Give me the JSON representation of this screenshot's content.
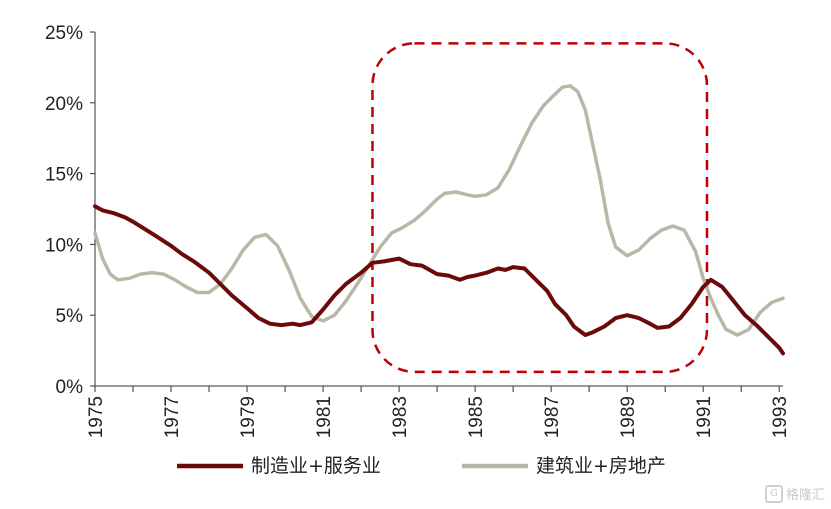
{
  "chart_data": {
    "type": "line",
    "title": "",
    "xlabel": "",
    "ylabel": "",
    "xlim": [
      1975,
      1993.1
    ],
    "ylim": [
      0,
      25
    ],
    "y_ticks": [
      "0%",
      "5%",
      "10%",
      "15%",
      "20%",
      "25%"
    ],
    "y_tick_values": [
      0,
      5,
      10,
      15,
      20,
      25
    ],
    "x_ticks": [
      "1975",
      "1977",
      "1979",
      "1981",
      "1983",
      "1985",
      "1987",
      "1989",
      "1991",
      "1993"
    ],
    "x_tick_values": [
      1975,
      1977,
      1979,
      1981,
      1983,
      1985,
      1987,
      1989,
      1991,
      1993
    ],
    "grid": false,
    "legend_position": "bottom",
    "series": [
      {
        "name": "制造业+服务业",
        "color": "#6b0a0a",
        "points": [
          [
            1975.0,
            12.7
          ],
          [
            1975.2,
            12.4
          ],
          [
            1975.5,
            12.2
          ],
          [
            1975.8,
            11.9
          ],
          [
            1976.0,
            11.6
          ],
          [
            1976.3,
            11.1
          ],
          [
            1976.6,
            10.6
          ],
          [
            1977.0,
            9.9
          ],
          [
            1977.3,
            9.3
          ],
          [
            1977.6,
            8.8
          ],
          [
            1978.0,
            8.0
          ],
          [
            1978.3,
            7.2
          ],
          [
            1978.6,
            6.4
          ],
          [
            1979.0,
            5.5
          ],
          [
            1979.3,
            4.8
          ],
          [
            1979.6,
            4.4
          ],
          [
            1979.9,
            4.3
          ],
          [
            1980.2,
            4.4
          ],
          [
            1980.4,
            4.3
          ],
          [
            1980.7,
            4.5
          ],
          [
            1981.0,
            5.4
          ],
          [
            1981.3,
            6.4
          ],
          [
            1981.6,
            7.2
          ],
          [
            1982.0,
            8.0
          ],
          [
            1982.3,
            8.7
          ],
          [
            1982.6,
            8.8
          ],
          [
            1983.0,
            9.0
          ],
          [
            1983.3,
            8.6
          ],
          [
            1983.6,
            8.5
          ],
          [
            1984.0,
            7.9
          ],
          [
            1984.3,
            7.8
          ],
          [
            1984.6,
            7.5
          ],
          [
            1984.8,
            7.7
          ],
          [
            1985.0,
            7.8
          ],
          [
            1985.3,
            8.0
          ],
          [
            1985.6,
            8.3
          ],
          [
            1985.8,
            8.2
          ],
          [
            1986.0,
            8.4
          ],
          [
            1986.3,
            8.3
          ],
          [
            1986.6,
            7.5
          ],
          [
            1986.9,
            6.7
          ],
          [
            1987.1,
            5.8
          ],
          [
            1987.4,
            5.0
          ],
          [
            1987.6,
            4.2
          ],
          [
            1987.9,
            3.6
          ],
          [
            1988.1,
            3.8
          ],
          [
            1988.4,
            4.2
          ],
          [
            1988.7,
            4.8
          ],
          [
            1989.0,
            5.0
          ],
          [
            1989.3,
            4.8
          ],
          [
            1989.6,
            4.4
          ],
          [
            1989.8,
            4.1
          ],
          [
            1990.1,
            4.2
          ],
          [
            1990.4,
            4.8
          ],
          [
            1990.7,
            5.8
          ],
          [
            1991.0,
            7.0
          ],
          [
            1991.2,
            7.5
          ],
          [
            1991.5,
            7.0
          ],
          [
            1991.8,
            6.0
          ],
          [
            1992.1,
            5.0
          ],
          [
            1992.4,
            4.3
          ],
          [
            1992.7,
            3.5
          ],
          [
            1993.0,
            2.7
          ],
          [
            1993.1,
            2.3
          ]
        ]
      },
      {
        "name": "建筑业+房地产",
        "color": "#b8b8a8",
        "points": [
          [
            1975.0,
            10.8
          ],
          [
            1975.2,
            9.0
          ],
          [
            1975.4,
            7.9
          ],
          [
            1975.6,
            7.5
          ],
          [
            1975.9,
            7.6
          ],
          [
            1976.2,
            7.9
          ],
          [
            1976.5,
            8.0
          ],
          [
            1976.8,
            7.9
          ],
          [
            1977.1,
            7.5
          ],
          [
            1977.4,
            7.0
          ],
          [
            1977.7,
            6.6
          ],
          [
            1978.0,
            6.6
          ],
          [
            1978.3,
            7.2
          ],
          [
            1978.6,
            8.3
          ],
          [
            1978.9,
            9.6
          ],
          [
            1979.2,
            10.5
          ],
          [
            1979.5,
            10.7
          ],
          [
            1979.8,
            9.9
          ],
          [
            1980.1,
            8.2
          ],
          [
            1980.4,
            6.2
          ],
          [
            1980.7,
            4.9
          ],
          [
            1981.0,
            4.6
          ],
          [
            1981.3,
            5.0
          ],
          [
            1981.6,
            6.0
          ],
          [
            1981.9,
            7.2
          ],
          [
            1982.2,
            8.5
          ],
          [
            1982.5,
            9.8
          ],
          [
            1982.8,
            10.8
          ],
          [
            1983.1,
            11.2
          ],
          [
            1983.4,
            11.7
          ],
          [
            1983.7,
            12.4
          ],
          [
            1984.0,
            13.2
          ],
          [
            1984.2,
            13.6
          ],
          [
            1984.5,
            13.7
          ],
          [
            1984.8,
            13.5
          ],
          [
            1985.0,
            13.4
          ],
          [
            1985.3,
            13.5
          ],
          [
            1985.6,
            14.0
          ],
          [
            1985.9,
            15.3
          ],
          [
            1986.2,
            17.0
          ],
          [
            1986.5,
            18.6
          ],
          [
            1986.8,
            19.8
          ],
          [
            1987.1,
            20.6
          ],
          [
            1987.3,
            21.1
          ],
          [
            1987.5,
            21.2
          ],
          [
            1987.7,
            20.8
          ],
          [
            1987.9,
            19.5
          ],
          [
            1988.1,
            17.0
          ],
          [
            1988.3,
            14.5
          ],
          [
            1988.5,
            11.5
          ],
          [
            1988.7,
            9.8
          ],
          [
            1989.0,
            9.2
          ],
          [
            1989.3,
            9.6
          ],
          [
            1989.6,
            10.4
          ],
          [
            1989.9,
            11.0
          ],
          [
            1990.2,
            11.3
          ],
          [
            1990.5,
            11.0
          ],
          [
            1990.8,
            9.5
          ],
          [
            1991.0,
            7.6
          ],
          [
            1991.2,
            6.2
          ],
          [
            1991.4,
            5.0
          ],
          [
            1991.6,
            4.0
          ],
          [
            1991.9,
            3.6
          ],
          [
            1992.2,
            4.0
          ],
          [
            1992.5,
            5.2
          ],
          [
            1992.8,
            5.9
          ],
          [
            1993.1,
            6.2
          ]
        ]
      }
    ],
    "annotation": {
      "shape": "dashed-rounded-rect",
      "color": "#c00000",
      "x_range": [
        1982.3,
        1991.1
      ],
      "y_range": [
        1.0,
        24.2
      ]
    }
  },
  "watermark": {
    "text": "格隆汇",
    "logo": "G"
  }
}
